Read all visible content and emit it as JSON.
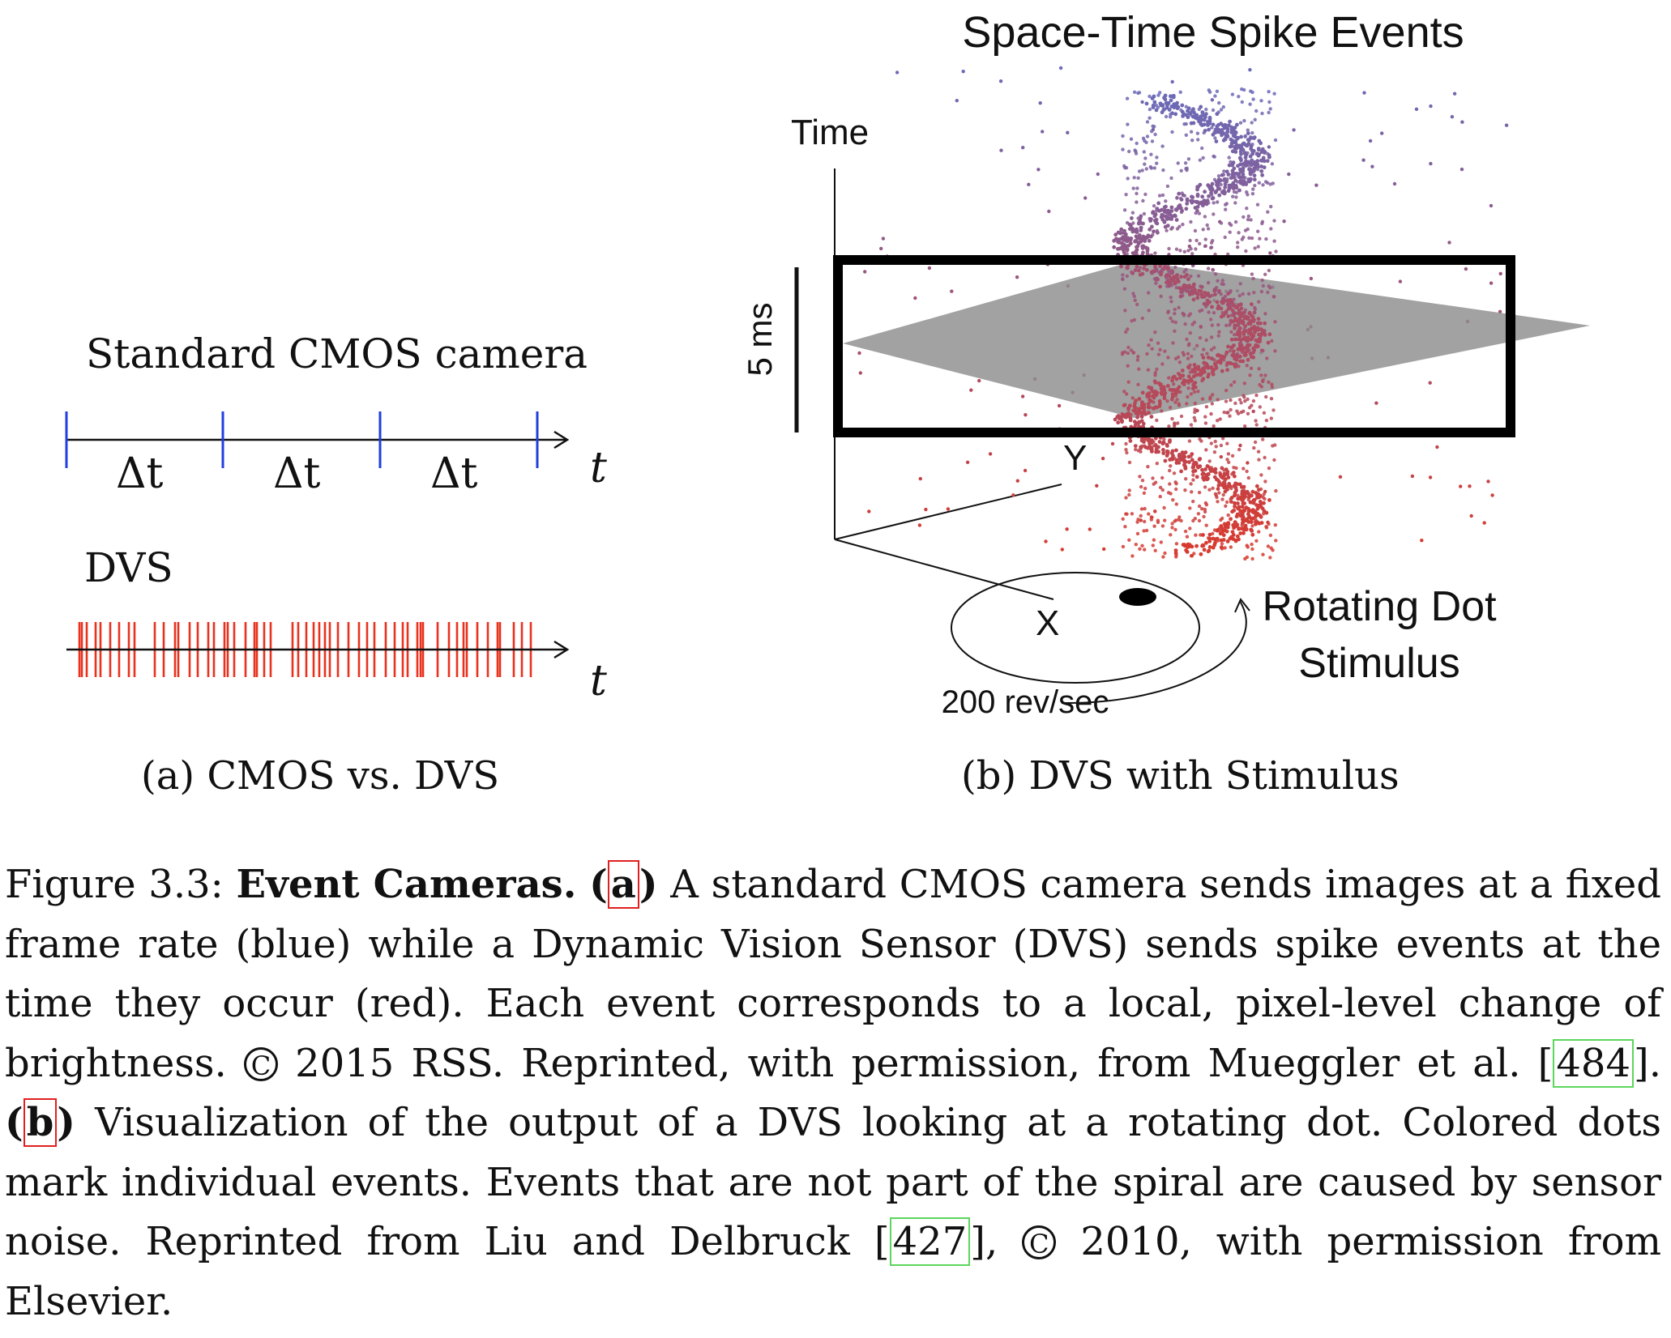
{
  "figure_a": {
    "cmos_label": "Standard CMOS camera",
    "dvs_label": "DVS",
    "interval_labels": [
      "Δt",
      "Δt",
      "Δt"
    ],
    "axis_label_top": "t",
    "axis_label_bottom": "t",
    "cmos_tick_color": "#1f3fe0",
    "dvs_spike_color": "#e8321e"
  },
  "figure_b": {
    "title": "Space-Time Spike Events",
    "time_axis_label": "Time",
    "y_axis_label": "Y",
    "x_axis_label": "X",
    "scale_bar_label": "5 ms",
    "stimulus_label_line1": "Rotating Dot",
    "stimulus_label_line2": "Stimulus",
    "rotation_rate_label": "200 rev/sec",
    "spike_color_early": "#d93a2e",
    "spike_color_late": "#6b6ab8"
  },
  "subcaptions": {
    "a": "(a) CMOS vs. DVS",
    "b": "(b) DVS with Stimulus"
  },
  "caption": {
    "figure_number": "Figure 3.3:",
    "bold_title": "Event Cameras.",
    "ref_a": "a",
    "text_a": "A standard CMOS camera sends images at a fixed frame rate (blue) while a Dynamic Vision Sensor (DVS) sends spike events at the time they occur (red). Each event corresponds to a local, pixel-level change of brightness.",
    "copyright_symbol": "C",
    "text_copyright_1": "2015 RSS. Reprinted, with permission, from Mueggler et al.",
    "citation_1": "484",
    "ref_b": "b",
    "text_b": "Visualization of the output of a DVS looking at a rotating dot. Colored dots mark individual events. Events that are not part of the spiral are caused by sensor noise. Reprinted from Liu and Delbruck",
    "citation_2": "427",
    "text_copyright_2": "2010, with permission from Elsevier."
  }
}
